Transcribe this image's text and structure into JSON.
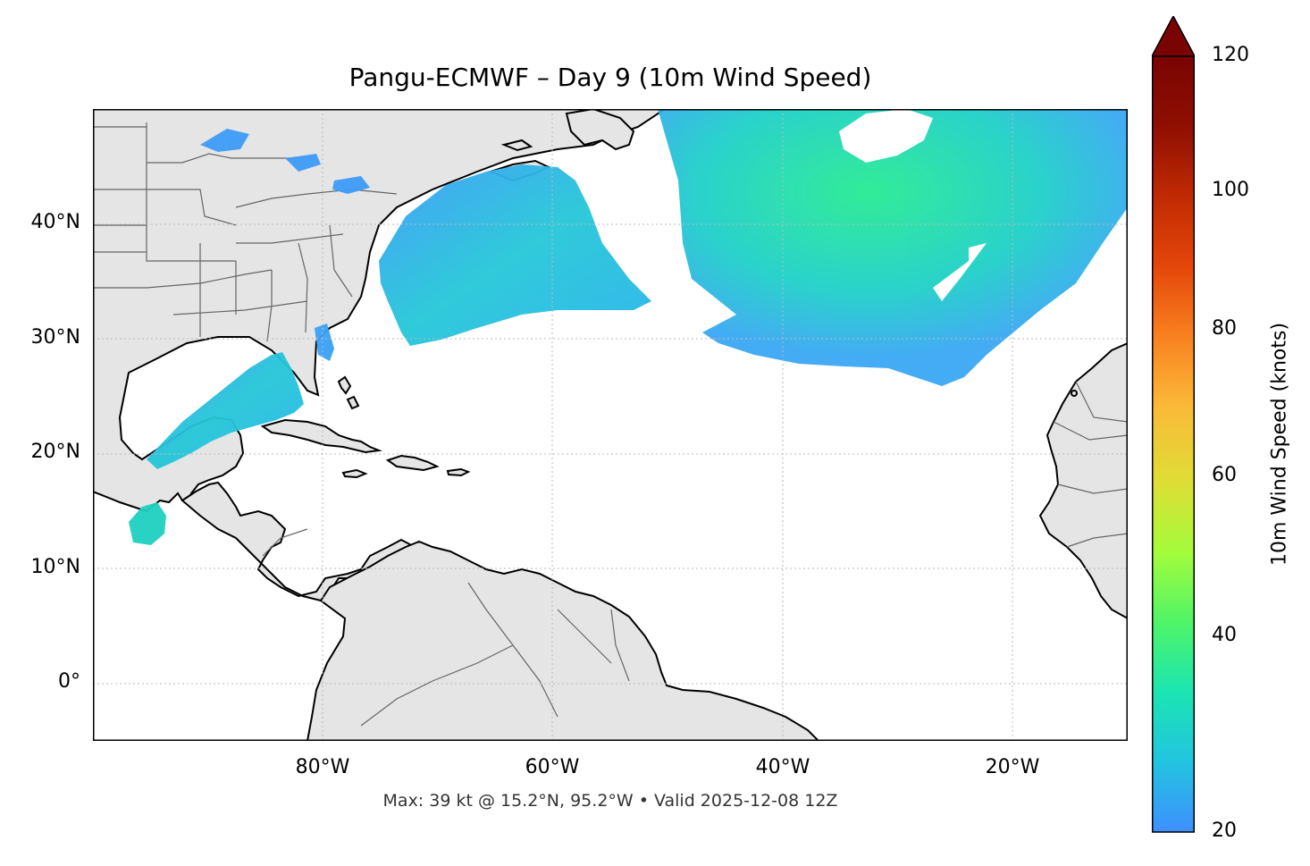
{
  "title": "Pangu-ECMWF – Day 9 (10m Wind Speed)",
  "caption": "Max: 39 kt @ 15.2°N, 95.2°W • Valid 2025-12-08 12Z",
  "map": {
    "extent": {
      "lon_min": -100,
      "lon_max": -10,
      "lat_min": -5,
      "lat_max": 50
    },
    "lat_ticks": [
      "40°N",
      "30°N",
      "20°N",
      "10°N",
      "0°"
    ],
    "lon_ticks": [
      "80°W",
      "60°W",
      "40°W",
      "20°W"
    ],
    "land_color": "#e5e5e5",
    "coast_color": "#000000",
    "border_color": "#666666",
    "grid_color": "#bbbbbb"
  },
  "colorbar": {
    "label": "10m Wind Speed (knots)",
    "ticks": [
      "120",
      "100",
      "80",
      "60",
      "40",
      "20"
    ],
    "range_knots": [
      20,
      120
    ],
    "extend": "max",
    "colormap": "turbo",
    "colors": [
      "#3e8ffd",
      "#22c4e0",
      "#1be5b3",
      "#4ff468",
      "#a3fc3b",
      "#dede35",
      "#fbb938",
      "#f8801f",
      "#e4460a",
      "#c02a03",
      "#8f0f01",
      "#7a0403"
    ]
  },
  "wind_field": {
    "max_knots": 39,
    "max_location": "15.2°N, 95.2°W"
  }
}
